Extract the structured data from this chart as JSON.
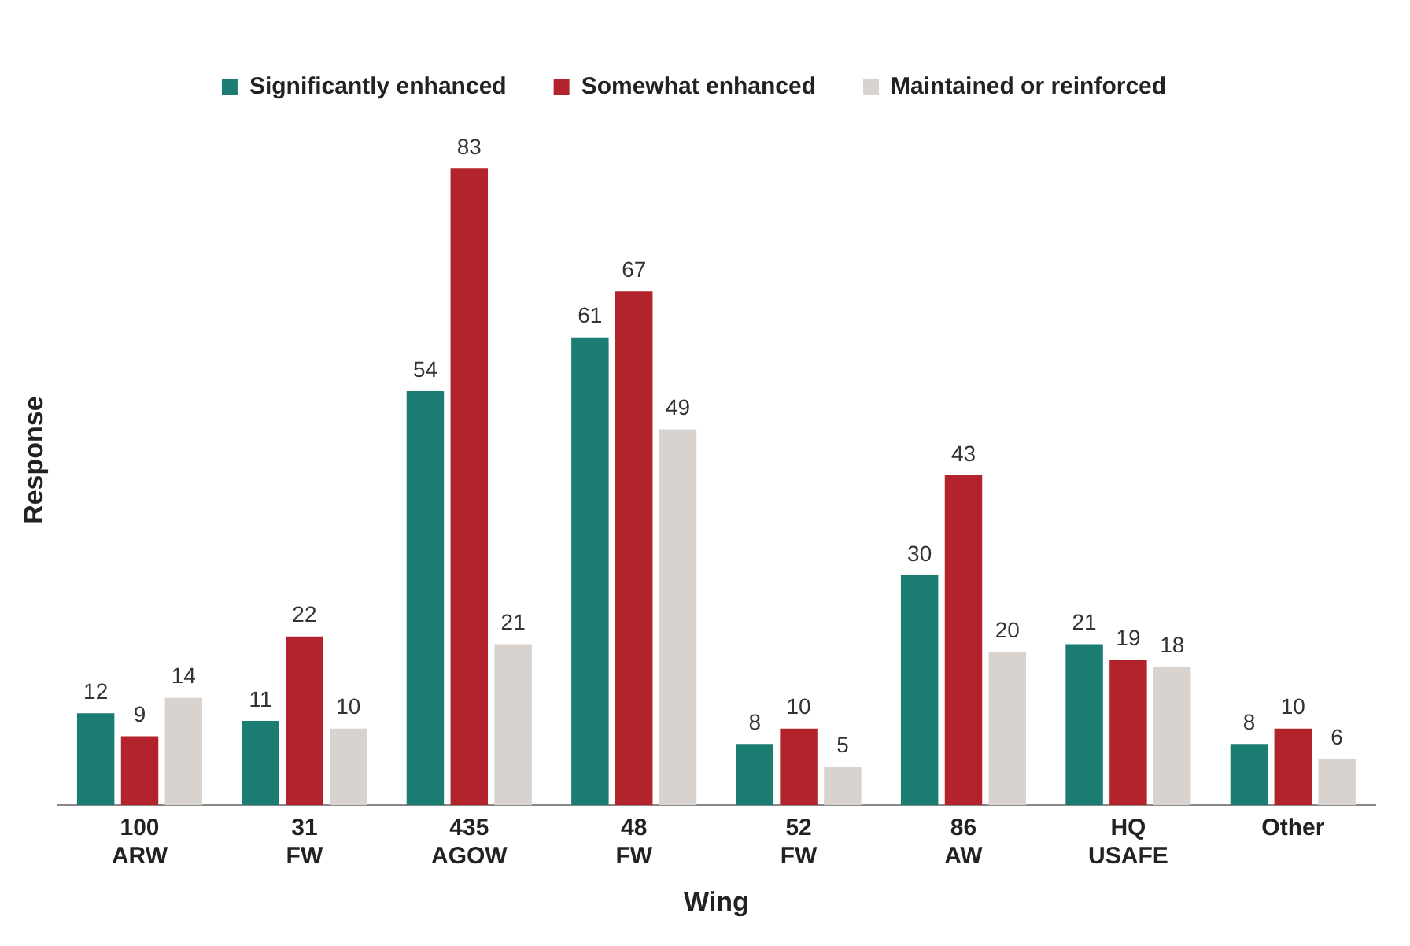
{
  "chart_data": {
    "type": "bar",
    "xlabel": "Wing",
    "ylabel": "Response",
    "categories": [
      "100 ARW",
      "31 FW",
      "435 AGOW",
      "48 FW",
      "52 FW",
      "86 AW",
      "HQ USAFE",
      "Other"
    ],
    "series": [
      {
        "name": "Significantly enhanced",
        "color": "#1b7d72",
        "values": [
          12,
          11,
          54,
          61,
          8,
          30,
          21,
          8
        ]
      },
      {
        "name": "Somewhat enhanced",
        "color": "#b3232b",
        "values": [
          9,
          22,
          83,
          67,
          10,
          43,
          19,
          10
        ]
      },
      {
        "name": "Maintained or reinforced",
        "color": "#d8d3cf",
        "values": [
          14,
          10,
          21,
          49,
          5,
          20,
          18,
          6
        ]
      }
    ],
    "data_labels": true,
    "legend": "top",
    "grid": false,
    "tick_labels": "x"
  }
}
